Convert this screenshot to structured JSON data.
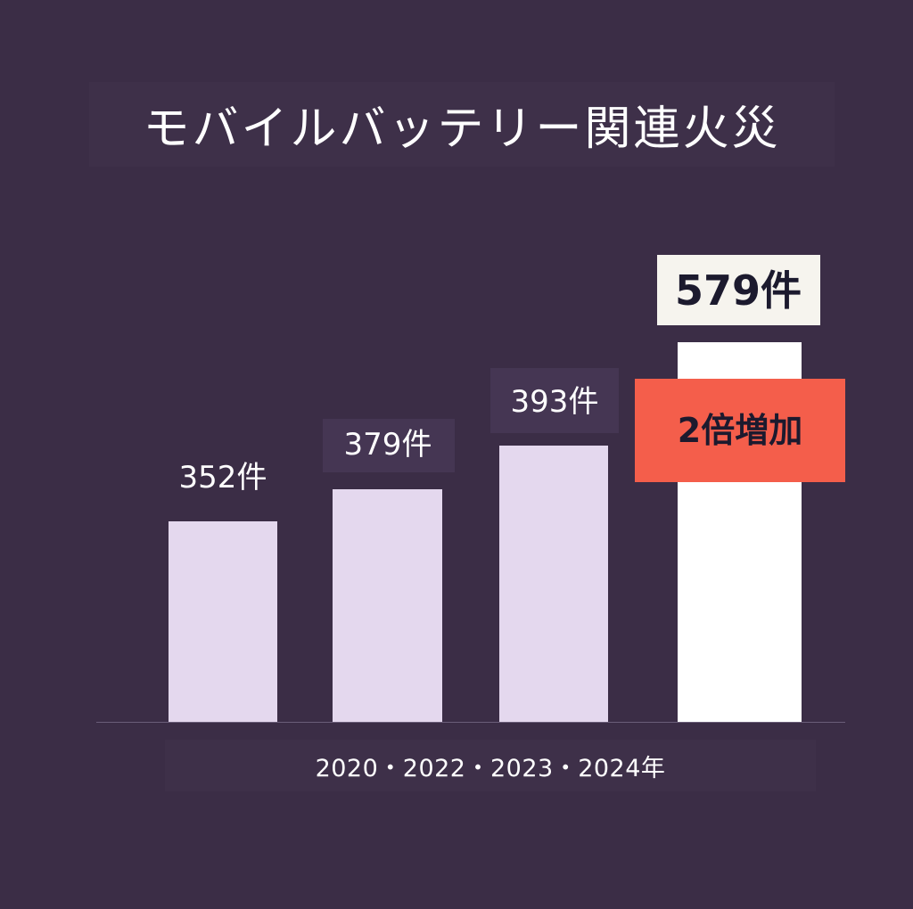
{
  "title": "モバイルバッテリー関連火災",
  "x_caption": "2020・2022・2023・2024年",
  "highlight_badge": "2倍増加",
  "colors": {
    "background": "#3b2d46",
    "bar": "#e4d8ee",
    "highlight_bar": "#ffffff",
    "badge": "#f45e4b",
    "label_box_highlight": "#f6f4ee",
    "label_text_dark": "#1c1a2e",
    "text_light": "#ffffff"
  },
  "chart_data": {
    "type": "bar",
    "title": "モバイルバッテリー関連火災",
    "categories": [
      "2020",
      "2022",
      "2023",
      "2024"
    ],
    "values": [
      352,
      379,
      393,
      579
    ],
    "data_labels": [
      "352件",
      "379件",
      "393件",
      "579件"
    ],
    "xlabel": "2020・2022・2023・2024年",
    "ylabel": "",
    "highlight_index": 3,
    "annotation": "2倍増加",
    "ylim": [
      0,
      579
    ],
    "grid": false
  }
}
